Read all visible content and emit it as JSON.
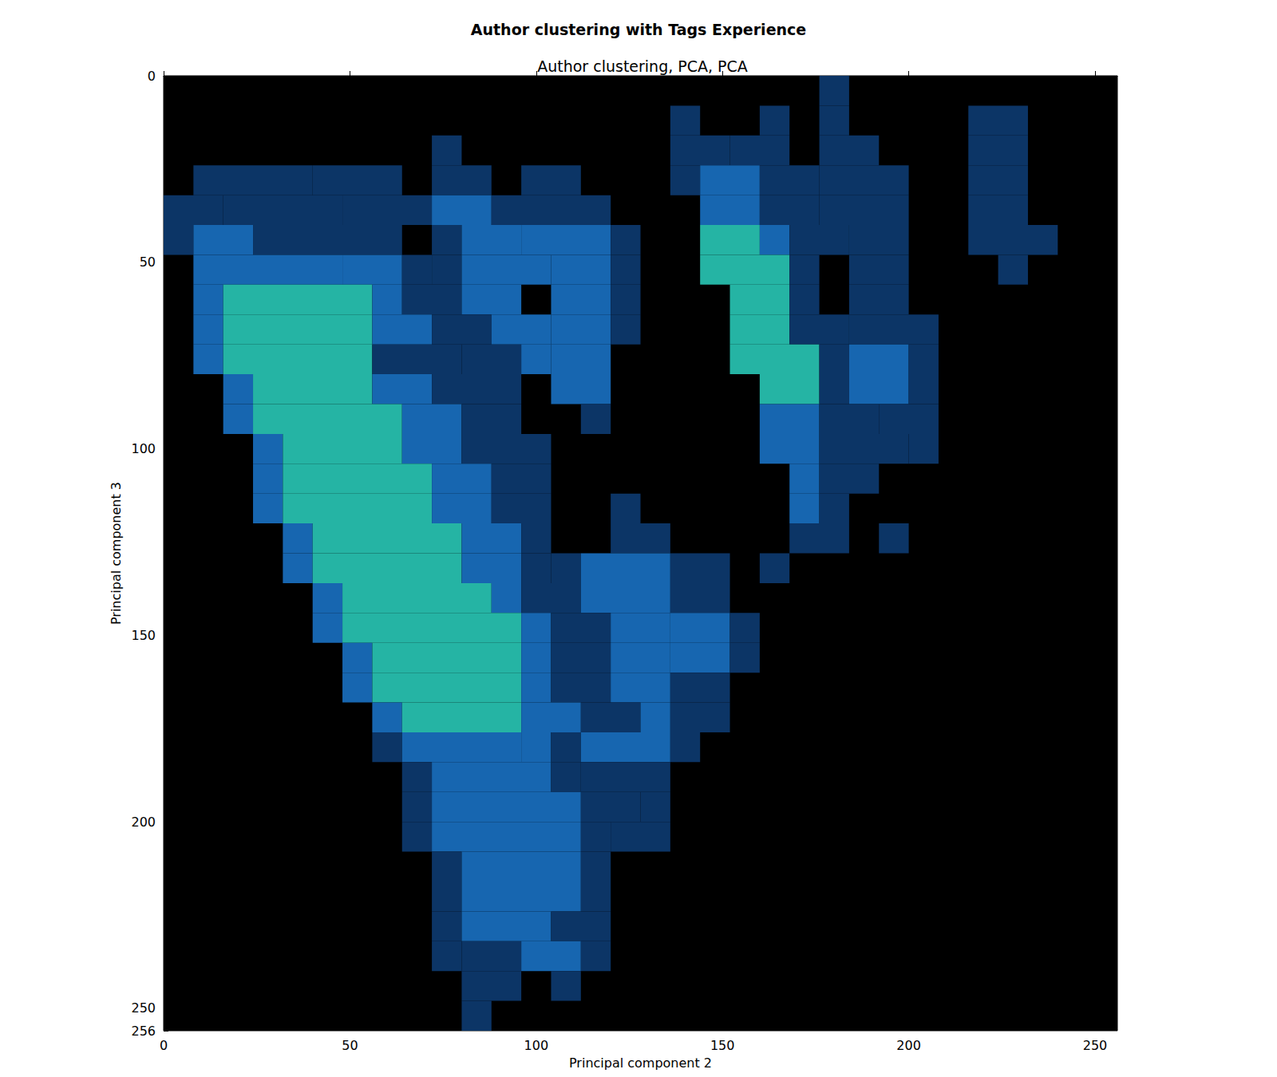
{
  "chart_data": {
    "type": "heatmap",
    "title": "Author clustering with Tags Experience",
    "subtitle": "Author clustering, PCA, PCA",
    "x_label": "Principal component 2",
    "y_label": "Principal component 3",
    "xlim": [
      0,
      256
    ],
    "ylim": [
      0,
      256
    ],
    "xticks": [
      0,
      50,
      100,
      150,
      200,
      250
    ],
    "yticks": [
      0,
      50,
      100,
      150,
      200,
      250
    ],
    "y_inverted": true,
    "grid": false,
    "density_levels": [
      1,
      2,
      3
    ],
    "rows": [
      {
        "y": [
          0,
          8
        ],
        "runs": [
          [
            176,
            184,
            1
          ]
        ]
      },
      {
        "y": [
          8,
          16
        ],
        "runs": [
          [
            136,
            144,
            1
          ],
          [
            160,
            168,
            1
          ],
          [
            176,
            184,
            1
          ],
          [
            216,
            232,
            1
          ]
        ]
      },
      {
        "y": [
          16,
          24
        ],
        "runs": [
          [
            72,
            80,
            1
          ],
          [
            136,
            152,
            1
          ],
          [
            152,
            168,
            1
          ],
          [
            176,
            192,
            1
          ],
          [
            216,
            232,
            1
          ]
        ]
      },
      {
        "y": [
          24,
          32
        ],
        "runs": [
          [
            8,
            40,
            1
          ],
          [
            40,
            64,
            1
          ],
          [
            72,
            88,
            1
          ],
          [
            96,
            112,
            1
          ],
          [
            136,
            144,
            1
          ],
          [
            144,
            160,
            2
          ],
          [
            160,
            176,
            1
          ],
          [
            176,
            200,
            1
          ],
          [
            216,
            232,
            1
          ]
        ]
      },
      {
        "y": [
          32,
          40
        ],
        "runs": [
          [
            0,
            16,
            1
          ],
          [
            16,
            48,
            1
          ],
          [
            48,
            72,
            1
          ],
          [
            72,
            88,
            2
          ],
          [
            88,
            120,
            1
          ],
          [
            144,
            160,
            2
          ],
          [
            160,
            176,
            1
          ],
          [
            176,
            200,
            1
          ],
          [
            216,
            232,
            1
          ]
        ]
      },
      {
        "y": [
          40,
          48
        ],
        "runs": [
          [
            0,
            8,
            1
          ],
          [
            8,
            24,
            2
          ],
          [
            24,
            64,
            1
          ],
          [
            72,
            80,
            1
          ],
          [
            80,
            96,
            2
          ],
          [
            96,
            120,
            2
          ],
          [
            120,
            128,
            1
          ],
          [
            144,
            160,
            3
          ],
          [
            160,
            168,
            2
          ],
          [
            168,
            184,
            1
          ],
          [
            184,
            200,
            1
          ],
          [
            216,
            240,
            1
          ]
        ]
      },
      {
        "y": [
          48,
          56
        ],
        "runs": [
          [
            8,
            48,
            2
          ],
          [
            48,
            64,
            2
          ],
          [
            64,
            72,
            1
          ],
          [
            72,
            80,
            1
          ],
          [
            80,
            104,
            2
          ],
          [
            104,
            120,
            2
          ],
          [
            120,
            128,
            1
          ],
          [
            144,
            168,
            3
          ],
          [
            168,
            176,
            1
          ],
          [
            184,
            200,
            1
          ],
          [
            224,
            232,
            1
          ]
        ]
      },
      {
        "y": [
          56,
          64
        ],
        "runs": [
          [
            8,
            16,
            2
          ],
          [
            16,
            56,
            3
          ],
          [
            56,
            64,
            2
          ],
          [
            64,
            80,
            1
          ],
          [
            80,
            96,
            2
          ],
          [
            104,
            120,
            2
          ],
          [
            120,
            128,
            1
          ],
          [
            152,
            168,
            3
          ],
          [
            168,
            176,
            1
          ],
          [
            184,
            200,
            1
          ]
        ]
      },
      {
        "y": [
          64,
          72
        ],
        "runs": [
          [
            8,
            16,
            2
          ],
          [
            16,
            56,
            3
          ],
          [
            56,
            72,
            2
          ],
          [
            72,
            88,
            1
          ],
          [
            88,
            104,
            2
          ],
          [
            104,
            120,
            2
          ],
          [
            120,
            128,
            1
          ],
          [
            152,
            168,
            3
          ],
          [
            168,
            184,
            1
          ],
          [
            184,
            208,
            1
          ]
        ]
      },
      {
        "y": [
          72,
          80
        ],
        "runs": [
          [
            8,
            16,
            2
          ],
          [
            16,
            56,
            3
          ],
          [
            56,
            80,
            1
          ],
          [
            80,
            96,
            1
          ],
          [
            96,
            104,
            2
          ],
          [
            104,
            120,
            2
          ],
          [
            152,
            176,
            3
          ],
          [
            176,
            184,
            1
          ],
          [
            184,
            200,
            2
          ],
          [
            200,
            208,
            1
          ]
        ]
      },
      {
        "y": [
          80,
          88
        ],
        "runs": [
          [
            16,
            24,
            2
          ],
          [
            24,
            56,
            3
          ],
          [
            56,
            72,
            2
          ],
          [
            72,
            96,
            1
          ],
          [
            104,
            120,
            2
          ],
          [
            160,
            176,
            3
          ],
          [
            176,
            184,
            1
          ],
          [
            184,
            200,
            2
          ],
          [
            200,
            208,
            1
          ]
        ]
      },
      {
        "y": [
          88,
          96
        ],
        "runs": [
          [
            16,
            24,
            2
          ],
          [
            24,
            64,
            3
          ],
          [
            64,
            80,
            2
          ],
          [
            80,
            96,
            1
          ],
          [
            112,
            120,
            1
          ],
          [
            160,
            176,
            2
          ],
          [
            176,
            192,
            1
          ],
          [
            192,
            208,
            1
          ]
        ]
      },
      {
        "y": [
          96,
          104
        ],
        "runs": [
          [
            24,
            32,
            2
          ],
          [
            32,
            64,
            3
          ],
          [
            64,
            80,
            2
          ],
          [
            80,
            104,
            1
          ],
          [
            160,
            176,
            2
          ],
          [
            176,
            200,
            1
          ],
          [
            200,
            208,
            1
          ]
        ]
      },
      {
        "y": [
          104,
          112
        ],
        "runs": [
          [
            24,
            32,
            2
          ],
          [
            32,
            72,
            3
          ],
          [
            72,
            88,
            2
          ],
          [
            88,
            104,
            1
          ],
          [
            168,
            176,
            2
          ],
          [
            176,
            192,
            1
          ]
        ]
      },
      {
        "y": [
          112,
          120
        ],
        "runs": [
          [
            24,
            32,
            2
          ],
          [
            32,
            72,
            3
          ],
          [
            72,
            88,
            2
          ],
          [
            88,
            104,
            1
          ],
          [
            120,
            128,
            1
          ],
          [
            168,
            176,
            2
          ],
          [
            176,
            184,
            1
          ]
        ]
      },
      {
        "y": [
          120,
          128
        ],
        "runs": [
          [
            32,
            40,
            2
          ],
          [
            40,
            80,
            3
          ],
          [
            80,
            96,
            2
          ],
          [
            96,
            104,
            1
          ],
          [
            120,
            136,
            1
          ],
          [
            168,
            184,
            1
          ],
          [
            192,
            200,
            1
          ]
        ]
      },
      {
        "y": [
          128,
          136
        ],
        "runs": [
          [
            32,
            40,
            2
          ],
          [
            40,
            80,
            3
          ],
          [
            80,
            96,
            2
          ],
          [
            96,
            104,
            1
          ],
          [
            104,
            112,
            1
          ],
          [
            112,
            136,
            2
          ],
          [
            136,
            152,
            1
          ],
          [
            160,
            168,
            1
          ]
        ]
      },
      {
        "y": [
          136,
          144
        ],
        "runs": [
          [
            40,
            48,
            2
          ],
          [
            48,
            88,
            3
          ],
          [
            88,
            96,
            2
          ],
          [
            96,
            112,
            1
          ],
          [
            112,
            136,
            2
          ],
          [
            136,
            152,
            1
          ]
        ]
      },
      {
        "y": [
          144,
          152
        ],
        "runs": [
          [
            40,
            48,
            2
          ],
          [
            48,
            96,
            3
          ],
          [
            96,
            104,
            2
          ],
          [
            104,
            120,
            1
          ],
          [
            120,
            136,
            2
          ],
          [
            136,
            152,
            2
          ],
          [
            152,
            160,
            1
          ]
        ]
      },
      {
        "y": [
          152,
          160
        ],
        "runs": [
          [
            48,
            56,
            2
          ],
          [
            56,
            96,
            3
          ],
          [
            96,
            104,
            2
          ],
          [
            104,
            120,
            1
          ],
          [
            120,
            136,
            2
          ],
          [
            136,
            152,
            2
          ],
          [
            152,
            160,
            1
          ]
        ]
      },
      {
        "y": [
          160,
          168
        ],
        "runs": [
          [
            48,
            56,
            2
          ],
          [
            56,
            96,
            3
          ],
          [
            96,
            104,
            2
          ],
          [
            104,
            120,
            1
          ],
          [
            120,
            136,
            2
          ],
          [
            136,
            152,
            1
          ]
        ]
      },
      {
        "y": [
          168,
          176
        ],
        "runs": [
          [
            56,
            64,
            2
          ],
          [
            64,
            96,
            3
          ],
          [
            96,
            112,
            2
          ],
          [
            112,
            128,
            1
          ],
          [
            128,
            136,
            2
          ],
          [
            136,
            152,
            1
          ]
        ]
      },
      {
        "y": [
          176,
          184
        ],
        "runs": [
          [
            56,
            64,
            1
          ],
          [
            64,
            96,
            2
          ],
          [
            96,
            104,
            2
          ],
          [
            104,
            112,
            1
          ],
          [
            112,
            136,
            2
          ],
          [
            136,
            144,
            1
          ]
        ]
      },
      {
        "y": [
          184,
          192
        ],
        "runs": [
          [
            64,
            72,
            1
          ],
          [
            72,
            104,
            2
          ],
          [
            104,
            112,
            1
          ],
          [
            112,
            136,
            1
          ]
        ]
      },
      {
        "y": [
          192,
          200
        ],
        "runs": [
          [
            64,
            72,
            1
          ],
          [
            72,
            112,
            2
          ],
          [
            112,
            128,
            1
          ],
          [
            128,
            136,
            1
          ]
        ]
      },
      {
        "y": [
          200,
          208
        ],
        "runs": [
          [
            64,
            72,
            1
          ],
          [
            72,
            112,
            2
          ],
          [
            112,
            120,
            1
          ],
          [
            120,
            136,
            1
          ]
        ]
      },
      {
        "y": [
          208,
          216
        ],
        "runs": [
          [
            72,
            80,
            1
          ],
          [
            80,
            112,
            2
          ],
          [
            112,
            120,
            1
          ]
        ]
      },
      {
        "y": [
          216,
          224
        ],
        "runs": [
          [
            72,
            80,
            1
          ],
          [
            80,
            112,
            2
          ],
          [
            112,
            120,
            1
          ]
        ]
      },
      {
        "y": [
          224,
          232
        ],
        "runs": [
          [
            72,
            80,
            1
          ],
          [
            80,
            104,
            2
          ],
          [
            104,
            120,
            1
          ]
        ]
      },
      {
        "y": [
          232,
          240
        ],
        "runs": [
          [
            72,
            80,
            1
          ],
          [
            80,
            96,
            1
          ],
          [
            96,
            112,
            2
          ],
          [
            112,
            120,
            1
          ]
        ]
      },
      {
        "y": [
          240,
          248
        ],
        "runs": [
          [
            80,
            96,
            1
          ],
          [
            104,
            112,
            1
          ]
        ]
      },
      {
        "y": [
          248,
          256
        ],
        "runs": [
          [
            80,
            88,
            1
          ]
        ]
      }
    ]
  }
}
